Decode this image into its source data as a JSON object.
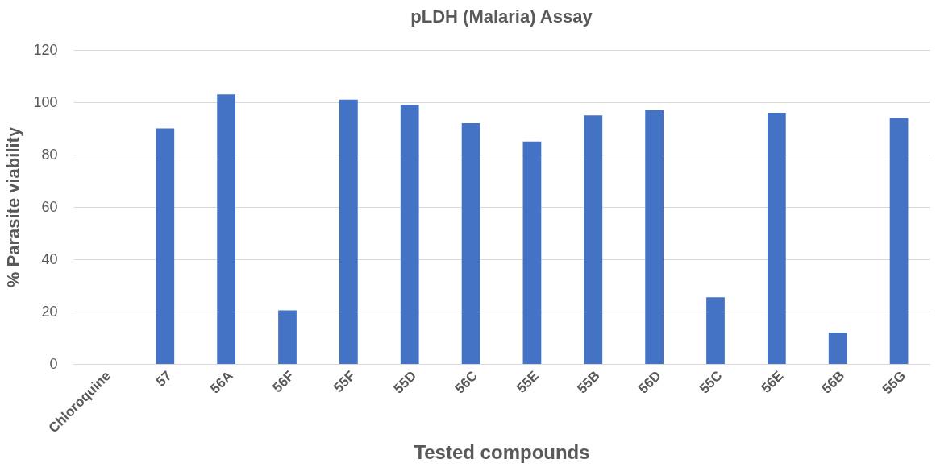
{
  "chart_data": {
    "type": "bar",
    "title": "pLDH (Malaria) Assay",
    "xlabel": "Tested compounds",
    "ylabel": "% Parasite viability",
    "categories": [
      "Chloroquine",
      "57",
      "56A",
      "56F",
      "55F",
      "55D",
      "56C",
      "55E",
      "55B",
      "56D",
      "55C",
      "56E",
      "56B",
      "55G",
      null
    ],
    "values": [
      0,
      90,
      103,
      20.5,
      101,
      99,
      92,
      85,
      95,
      97,
      25.5,
      96,
      12,
      94,
      null
    ],
    "color": "#4472c4",
    "ylim": [
      0,
      120
    ],
    "yticks": [
      0,
      20,
      40,
      60,
      80,
      100,
      120
    ],
    "grid": "y"
  }
}
